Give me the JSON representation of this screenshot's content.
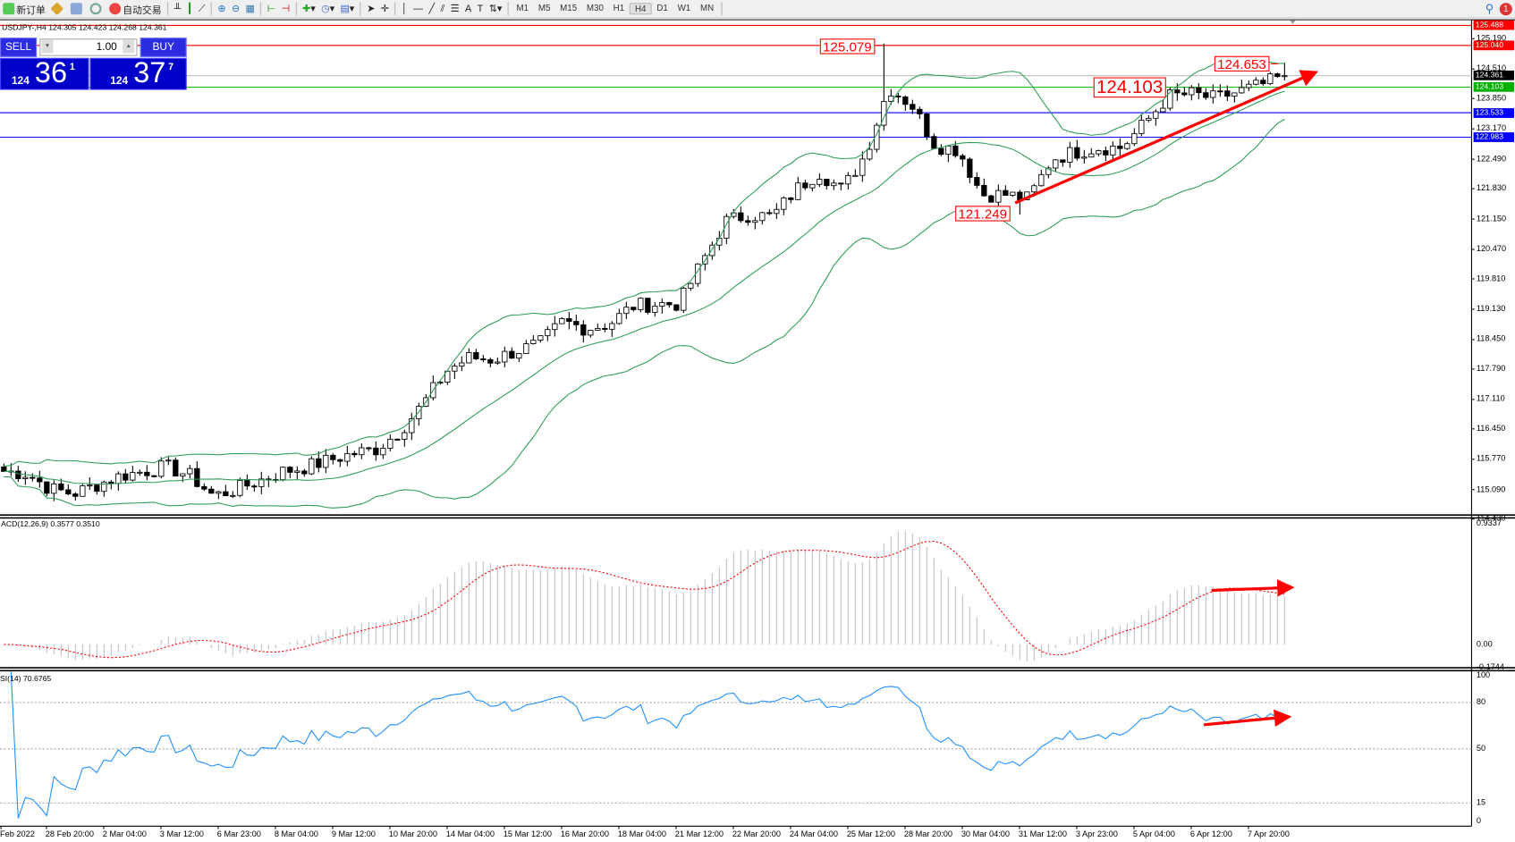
{
  "toolbar": {
    "new_order": "新订单",
    "auto_trading": "自动交易",
    "timeframes": [
      "M1",
      "M5",
      "M15",
      "M30",
      "H1",
      "H4",
      "D1",
      "W1",
      "MN"
    ],
    "active_timeframe": "H4",
    "notification_count": "1"
  },
  "chart": {
    "header": "USDJPY-,H4  124.305 124.423 124.268 124.361",
    "symbol": "USDJPY-",
    "timeframe": "H4",
    "trade_panel": {
      "sell_label": "SELL",
      "buy_label": "BUY",
      "lot": "1.00",
      "bid_prefix": "124",
      "bid_big": "36",
      "bid_sup": "1",
      "ask_prefix": "124",
      "ask_big": "37",
      "ask_sup": "7"
    },
    "price_axis": [
      "125.190",
      "124.510",
      "123.850",
      "123.170",
      "122.490",
      "121.830",
      "121.150",
      "120.470",
      "119.810",
      "119.130",
      "118.450",
      "117.790",
      "117.110",
      "116.450",
      "115.770",
      "115.090",
      "114.430"
    ],
    "levels": [
      {
        "price": "125.488",
        "color": "#ff0000"
      },
      {
        "price": "125.040",
        "color": "#ff0000"
      },
      {
        "price": "124.361",
        "color": "#000000",
        "line": "#c0c0c0"
      },
      {
        "price": "124.103",
        "color": "#00b000",
        "line": "#22bb22"
      },
      {
        "price": "123.533",
        "color": "#0000ff"
      },
      {
        "price": "122.983",
        "color": "#0000ff"
      }
    ],
    "annotations": {
      "high": "125.079",
      "mid": "124.103",
      "recent": "124.653",
      "low": "121.249"
    },
    "close_prices_approx": [
      115.5,
      115.45,
      115.1,
      115.0,
      115.2,
      115.4,
      115.5,
      115.6,
      115.4,
      114.95,
      115.1,
      115.3,
      115.5,
      115.6,
      115.75,
      115.9,
      116.0,
      116.4,
      117.0,
      117.75,
      118.05,
      118.0,
      118.2,
      118.35,
      118.85,
      118.7,
      118.8,
      119.2,
      119.25,
      119.25,
      120.2,
      121.1,
      121.25,
      121.2,
      121.8,
      122.2,
      121.8,
      122.6,
      124.1,
      123.7,
      122.8,
      122.7,
      121.7,
      121.7,
      121.6,
      122.5,
      122.65,
      122.75,
      122.75,
      123.3,
      123.9,
      123.95,
      123.85,
      124.0,
      124.15,
      124.36
    ],
    "indicator_colors": {
      "bollinger": "#2e9e57",
      "macd_hist": "#c0c0c0",
      "macd_signal": "#ff0000",
      "rsi": "#1e90ff",
      "trend_arrow": "#ff0000"
    }
  },
  "macd": {
    "label": "ACD(12,26,9) 0.3577 0.3510",
    "axis": [
      "0.9337",
      "0.00",
      "-0.1744"
    ]
  },
  "rsi": {
    "label": "SI(14) 70.6765",
    "axis": [
      "100",
      "80",
      "50",
      "15",
      "0"
    ]
  },
  "time_axis": [
    "Feb 2022",
    "28 Feb 20:00",
    "2 Mar 04:00",
    "3 Mar 12:00",
    "6 Mar 23:00",
    "8 Mar 04:00",
    "9 Mar 12:00",
    "10 Mar 20:00",
    "14 Mar 04:00",
    "15 Mar 12:00",
    "16 Mar 20:00",
    "18 Mar 04:00",
    "21 Mar 12:00",
    "22 Mar 20:00",
    "24 Mar 04:00",
    "25 Mar 12:00",
    "28 Mar 20:00",
    "30 Mar 04:00",
    "31 Mar 12:00",
    "3 Apr 23:00",
    "5 Apr 04:00",
    "6 Apr 12:00",
    "7 Apr 20:00"
  ]
}
